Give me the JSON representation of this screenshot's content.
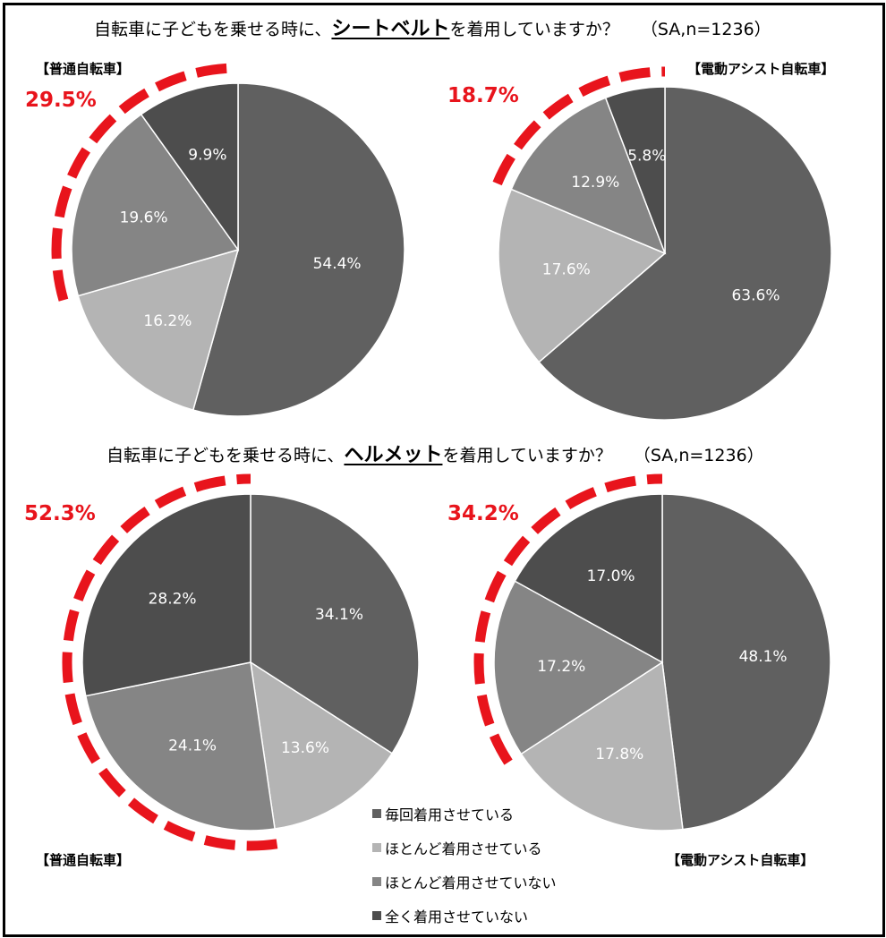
{
  "titles": [
    {
      "pre": "自転車に子どもを乗せる時に、",
      "kw": "シートベルト",
      "post": "を着用していますか？",
      "sa": "（SA,n=1236）"
    },
    {
      "pre": "自転車に子どもを乗せる時に、",
      "kw": "ヘルメット",
      "post": "を着用していますか？",
      "sa": "（SA,n=1236）"
    }
  ],
  "legend": [
    {
      "label": "毎回着用させている",
      "color": "#606060"
    },
    {
      "label": "ほとんど着用させている",
      "color": "#b4b4b4"
    },
    {
      "label": "ほとんど着用させていない",
      "color": "#858585"
    },
    {
      "label": "全く着用させていない",
      "color": "#4d4d4d"
    }
  ],
  "highlight_color": "#e8141c",
  "chart_data": [
    {
      "type": "pie",
      "label": "【普通自転車】",
      "highlight": "29.5%",
      "categories": [
        "毎回着用させている",
        "ほとんど着用させている",
        "ほとんど着用させていない",
        "全く着用させていない"
      ],
      "values": [
        54.4,
        16.2,
        19.6,
        9.9
      ],
      "data_labels": [
        "54.4%",
        "16.2%",
        "19.6%",
        "9.9%"
      ]
    },
    {
      "type": "pie",
      "label": "【電動アシスト自転車】",
      "highlight": "18.7%",
      "categories": [
        "毎回着用させている",
        "ほとんど着用させている",
        "ほとんど着用させていない",
        "全く着用させていない"
      ],
      "values": [
        63.6,
        17.6,
        12.9,
        5.8
      ],
      "data_labels": [
        "63.6%",
        "17.6%",
        "12.9%",
        "5.8%"
      ]
    },
    {
      "type": "pie",
      "label": "【普通自転車】",
      "highlight": "52.3%",
      "categories": [
        "毎回着用させている",
        "ほとんど着用させている",
        "ほとんど着用させていない",
        "全く着用させていない"
      ],
      "values": [
        34.1,
        13.6,
        24.1,
        28.2
      ],
      "data_labels": [
        "34.1%",
        "13.6%",
        "24.1%",
        "28.2%"
      ]
    },
    {
      "type": "pie",
      "label": "【電動アシスト自転車】",
      "highlight": "34.2%",
      "categories": [
        "毎回着用させている",
        "ほとんど着用させている",
        "ほとんど着用させていない",
        "全く着用させていない"
      ],
      "values": [
        48.1,
        17.8,
        17.2,
        17.0
      ],
      "data_labels": [
        "48.1%",
        "17.8%",
        "17.2%",
        "17.0%"
      ]
    }
  ]
}
